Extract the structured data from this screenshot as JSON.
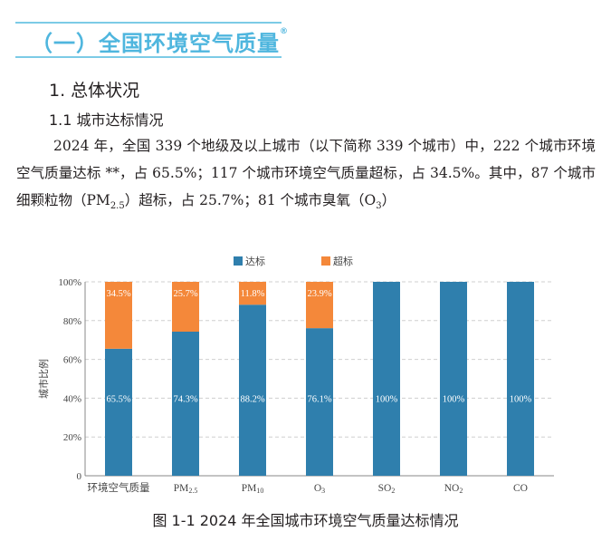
{
  "section": {
    "title": "（一）全国环境空气质量",
    "mark": "®"
  },
  "heading1": "1. 总体状况",
  "heading2": "1.1  城市达标情况",
  "paragraph": {
    "part1": "2024 年，全国 339 个地级及以上城市（以下简称 339 个城市）中，222 个城市环境空气质量达标 **，占 65.5%；117 个城市环境空气质量超标，占 34.5%。其中，87 个城市细颗粒物（PM",
    "sub1": "2.5",
    "part2": "）超标，占 25.7%；81 个城市臭氧（O",
    "sub2": "3",
    "part3": "）"
  },
  "colors": {
    "compliant": "#2f7fad",
    "exceed": "#f4883a",
    "accent": "#4fb6de"
  },
  "chart_data": {
    "type": "bar",
    "stacked": true,
    "categories": [
      {
        "main": "环境空气质量",
        "sub": ""
      },
      {
        "main": "PM",
        "sub": "2.5"
      },
      {
        "main": "PM",
        "sub": "10"
      },
      {
        "main": "O",
        "sub": "3"
      },
      {
        "main": "SO",
        "sub": "2"
      },
      {
        "main": "NO",
        "sub": "2"
      },
      {
        "main": "CO",
        "sub": ""
      }
    ],
    "series": [
      {
        "name": "达标",
        "values": [
          65.5,
          74.3,
          88.2,
          76.1,
          100,
          100,
          100
        ],
        "labels": [
          "65.5%",
          "74.3%",
          "88.2%",
          "76.1%",
          "100%",
          "100%",
          "100%"
        ]
      },
      {
        "name": "超标",
        "values": [
          34.5,
          25.7,
          11.8,
          23.9,
          0,
          0,
          0
        ],
        "labels": [
          "34.5%",
          "25.7%",
          "11.8%",
          "23.9%",
          "",
          "",
          ""
        ]
      }
    ],
    "ylabel": "城市比例",
    "yticks": [
      "0",
      "20%",
      "40%",
      "60%",
      "80%",
      "100%"
    ],
    "ylim": [
      0,
      100
    ],
    "grid": true,
    "legend": "top-center",
    "title": "图 1-1  2024 年全国城市环境空气质量达标情况"
  }
}
